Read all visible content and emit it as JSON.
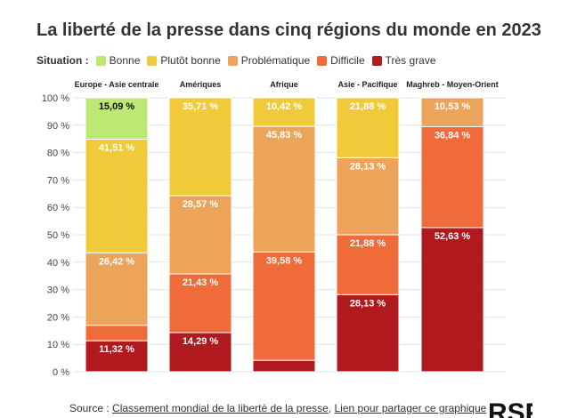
{
  "title": "La liberté de la presse dans cinq régions du monde en 2023",
  "legend": {
    "label": "Situation :",
    "items": [
      {
        "name": "Bonne",
        "color": "#bde873"
      },
      {
        "name": "Plutôt bonne",
        "color": "#f1ca3a"
      },
      {
        "name": "Problématique",
        "color": "#eca35a"
      },
      {
        "name": "Difficile",
        "color": "#ef6b3a"
      },
      {
        "name": "Très grave",
        "color": "#b0191e"
      }
    ]
  },
  "chart_data": {
    "type": "bar",
    "stacked": true,
    "percent": true,
    "categories": [
      "Europe - Asie centrale",
      "Amériques",
      "Afrique",
      "Asie - Pacifique",
      "Maghreb - Moyen-Orient"
    ],
    "series": [
      {
        "name": "Très grave",
        "color": "#b0191e",
        "values": [
          11.32,
          14.29,
          4.17,
          28.13,
          52.63
        ],
        "labels": [
          "11,32 %",
          "14,29 %",
          "",
          "28,13 %",
          "52,63 %"
        ]
      },
      {
        "name": "Difficile",
        "color": "#ef6b3a",
        "values": [
          5.66,
          21.43,
          39.58,
          21.88,
          36.84
        ],
        "labels": [
          "",
          "21,43 %",
          "39,58 %",
          "21,88 %",
          "36,84 %"
        ]
      },
      {
        "name": "Problématique",
        "color": "#eca35a",
        "values": [
          26.42,
          28.57,
          45.83,
          28.13,
          10.53
        ],
        "labels": [
          "26,42 %",
          "28,57 %",
          "45,83 %",
          "28,13 %",
          "10,53 %"
        ]
      },
      {
        "name": "Plutôt bonne",
        "color": "#f1ca3a",
        "values": [
          41.51,
          35.71,
          10.42,
          21.88,
          0
        ],
        "labels": [
          "41,51 %",
          "35,71 %",
          "10,42 %",
          "21,88 %",
          ""
        ]
      },
      {
        "name": "Bonne",
        "color": "#bde873",
        "values": [
          15.09,
          0,
          0,
          0,
          0
        ],
        "labels": [
          "15,09 %",
          "",
          "",
          "",
          ""
        ]
      }
    ],
    "yticks": [
      "0 %",
      "10 %",
      "20 %",
      "30 %",
      "40 %",
      "50 %",
      "60 %",
      "70 %",
      "80 %",
      "90 %",
      "100 %"
    ],
    "ylim": [
      0,
      100
    ],
    "grid": true,
    "legend_position": "top"
  },
  "source": {
    "prefix": "Source : ",
    "link1": "Classement mondial de la liberté de la presse",
    "separator": ", ",
    "link2": "Lien pour partager ce graphique"
  }
}
